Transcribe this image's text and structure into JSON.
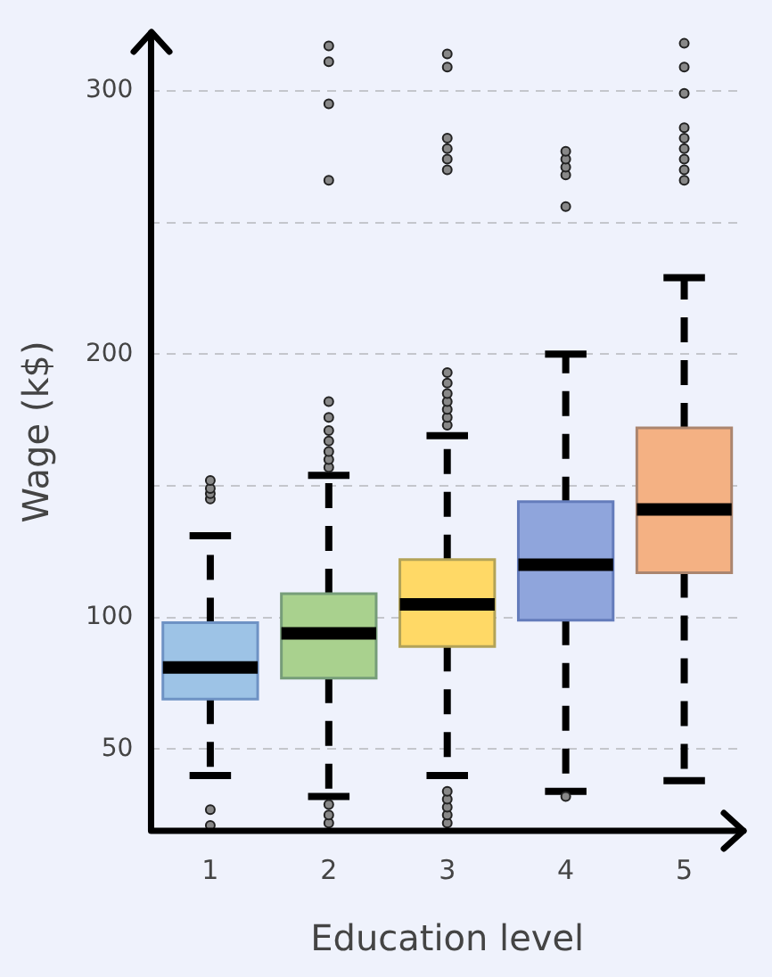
{
  "chart_data": {
    "type": "box",
    "xlabel": "Education level",
    "ylabel": "Wage (k$)",
    "categories": [
      "1",
      "2",
      "3",
      "4",
      "5"
    ],
    "colors": [
      "#9dc3e6",
      "#a9d18e",
      "#ffd966",
      "#8fa5dc",
      "#f4b183"
    ],
    "ylim": [
      19,
      322
    ],
    "yticks": [
      50,
      100,
      {
        "value": 150,
        "label": null
      },
      200,
      {
        "value": 250,
        "label": null
      },
      300
    ],
    "grid": "y",
    "boxes": [
      {
        "low": 40,
        "q1": 69,
        "median": 81,
        "q3": 98,
        "high": 131,
        "outliers": [
          21,
          27,
          145,
          147,
          149,
          152
        ]
      },
      {
        "low": 32,
        "q1": 77,
        "median": 94,
        "q3": 109,
        "high": 154,
        "outliers": [
          22,
          25,
          29,
          157,
          160,
          163,
          167,
          171,
          176,
          182,
          266,
          295,
          311,
          317
        ]
      },
      {
        "low": 40,
        "q1": 89,
        "median": 105,
        "q3": 122,
        "high": 169,
        "outliers": [
          22,
          25,
          28,
          31,
          34,
          173,
          176,
          179,
          182,
          185,
          189,
          193,
          270,
          274,
          278,
          282,
          309,
          314
        ]
      },
      {
        "low": 34,
        "q1": 99,
        "median": 120,
        "q3": 144,
        "high": 200,
        "outliers": [
          32,
          256,
          268,
          271,
          274,
          277
        ]
      },
      {
        "low": 38,
        "q1": 117,
        "median": 141,
        "q3": 172,
        "high": 229,
        "outliers": [
          266,
          270,
          274,
          278,
          282,
          286,
          299,
          309,
          318
        ]
      }
    ]
  }
}
